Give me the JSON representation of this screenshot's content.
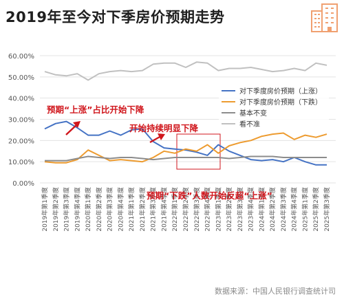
{
  "title": "2019年至今对下季房价预期走势",
  "source": "数据来源：中国人民银行调查统计司",
  "colors": {
    "up": "#4472c4",
    "down": "#ed9b2f",
    "flat": "#8c8c8c",
    "unsure": "#c0c0c0",
    "annotation": "#d0161c",
    "icon": "#f0a070"
  },
  "annotations": {
    "a1": "预期“上涨”占比开始下降",
    "a2": "开始持续明显下降",
    "a3": "预期“下跌”人数开始反超“上涨”"
  },
  "chart_data": {
    "type": "line",
    "title": "2019年至今对下季房价预期走势",
    "ylim": [
      0,
      60
    ],
    "yticks": [
      "0.00%",
      "10.00%",
      "20.00%",
      "30.00%",
      "40.00%",
      "50.00%",
      "60.00%"
    ],
    "grid": true,
    "legend_position": "right",
    "categories": [
      "2019年第1季度",
      "2019年第2季度",
      "2019年第3季度",
      "2019年第4季度",
      "2020年第1季度",
      "2020年第2季度",
      "2020年第3季度",
      "2020年第4季度",
      "2021年第1季度",
      "2021年第2季度",
      "2021年第3季度",
      "2021年第4季度",
      "2022年第1季度",
      "2022年第2季度",
      "2022年第3季度",
      "2022年第4季度",
      "2023年第1季度",
      "2023年第2季度",
      "2023年第3季度",
      "2023年第4季度",
      "2024年第1季度",
      "2024年第2季度",
      "2024年第3季度",
      "2024年第4季度",
      "2025年第1季度",
      "2025年第2季度",
      "2025年第3季度"
    ],
    "series": [
      {
        "name": "对下季度房价预期（上涨）",
        "color": "#4472c4",
        "values": [
          25.5,
          28,
          29,
          26,
          22.5,
          22.5,
          24.5,
          22.5,
          25,
          25.5,
          19.5,
          16.5,
          16,
          15.5,
          14.5,
          13,
          18,
          15,
          13,
          11,
          10.5,
          11,
          10,
          12,
          10,
          8.5,
          8.5
        ]
      },
      {
        "name": "对下季度房价预期（下跌）",
        "color": "#ed9b2f",
        "values": [
          10,
          9.5,
          9.5,
          11,
          15.5,
          13,
          10.5,
          11,
          10.5,
          10,
          12,
          15,
          14,
          16,
          15,
          18,
          14,
          17.5,
          19,
          20,
          22,
          23,
          23.5,
          20.5,
          22.5,
          21.5,
          23
        ]
      },
      {
        "name": "基本不变",
        "color": "#8c8c8c",
        "values": [
          10.5,
          10.5,
          10.5,
          11.5,
          12.5,
          12,
          11.5,
          12,
          12,
          11.5,
          11,
          11.5,
          12,
          12,
          12,
          12,
          12,
          11.5,
          12,
          12.5,
          12.5,
          12.5,
          12,
          12,
          12,
          12,
          12
        ]
      },
      {
        "name": "看不准",
        "color": "#c0c0c0",
        "values": [
          52.5,
          51,
          50.5,
          51.5,
          48.5,
          51.5,
          52.5,
          53,
          52.5,
          53,
          56,
          56.5,
          56.5,
          54.5,
          57,
          56.5,
          53,
          54,
          54,
          54.5,
          53.5,
          52.5,
          53,
          54,
          53,
          56.5,
          55.5
        ]
      }
    ]
  }
}
